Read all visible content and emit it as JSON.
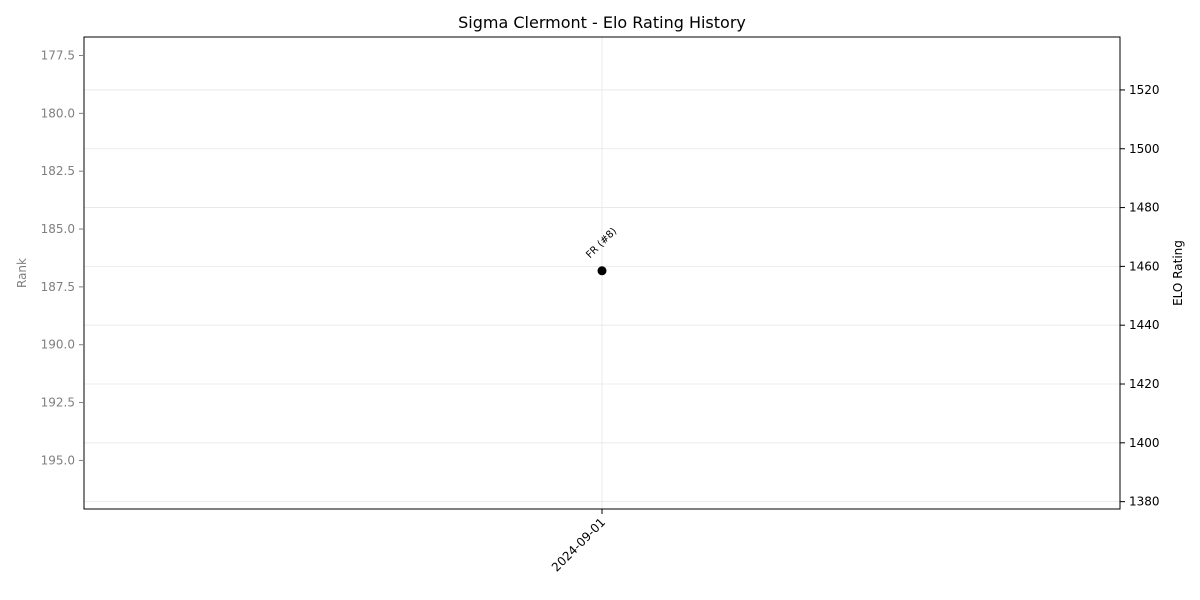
{
  "chart_data": {
    "type": "scatter",
    "title": "Sigma Clermont - Elo Rating History",
    "xlabel": "",
    "left_axis": {
      "label": "Rank",
      "color": "#808080",
      "inverted": true,
      "range": [
        176.7,
        197.1
      ],
      "ticks": [
        "177.5",
        "180.0",
        "182.5",
        "185.0",
        "187.5",
        "190.0",
        "192.5",
        "195.0"
      ]
    },
    "right_axis": {
      "label": "ELO Rating",
      "color": "#000000",
      "range": [
        1377.5,
        1538.0
      ],
      "ticks": [
        "1380",
        "1400",
        "1420",
        "1440",
        "1460",
        "1480",
        "1500",
        "1520"
      ]
    },
    "x_ticks": [
      "2024-09-01"
    ],
    "grid": true,
    "points": [
      {
        "x": "2024-09-01",
        "elo": 1458.5,
        "rank": 187,
        "annotation": "FR (#8)",
        "color": "#000000"
      }
    ]
  }
}
